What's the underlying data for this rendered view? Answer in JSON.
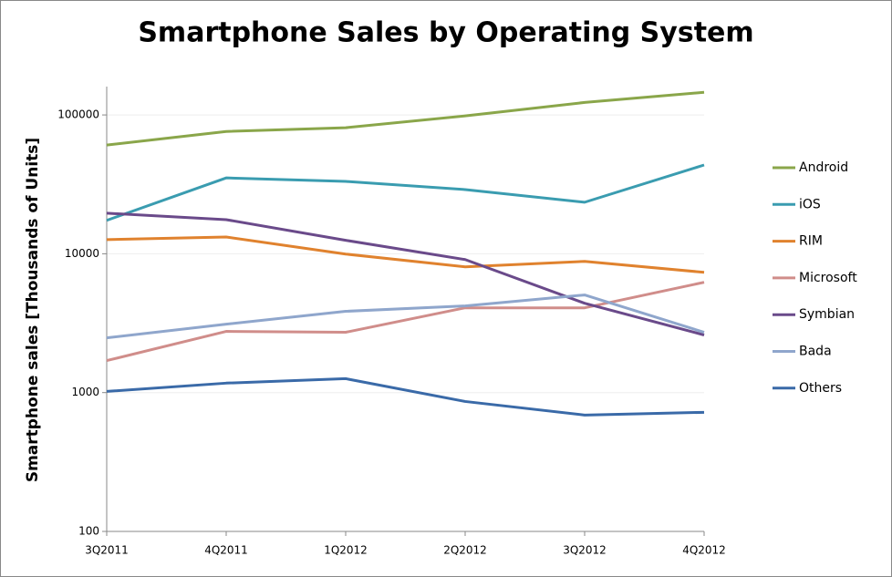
{
  "chart_data": {
    "type": "line",
    "title": "Smartphone Sales by Operating System",
    "y_label": "Smartphone sales [Thousands of Units]",
    "categories": [
      "3Q2011",
      "4Q2011",
      "1Q2012",
      "2Q2012",
      "3Q2012",
      "4Q2012"
    ],
    "log_scale": true,
    "grid": true,
    "legend": "right",
    "ylim": [
      100,
      160000
    ],
    "yticks": [
      100,
      1000,
      10000,
      100000
    ],
    "series": [
      {
        "name": "Android",
        "color": "#8aa64a",
        "values": [
          60700,
          76000,
          80900,
          98400,
          123000,
          145500
        ]
      },
      {
        "name": "iOS",
        "color": "#3a9cb0",
        "values": [
          17400,
          35200,
          33200,
          29000,
          23500,
          43600
        ]
      },
      {
        "name": "RIM",
        "color": "#e0822e",
        "values": [
          12650,
          13200,
          9950,
          8050,
          8810,
          7350
        ]
      },
      {
        "name": "Microsoft",
        "color": "#d08d8a",
        "values": [
          1700,
          2760,
          2720,
          4080,
          4080,
          6230
        ]
      },
      {
        "name": "Symbian",
        "color": "#6a4a8a",
        "values": [
          19600,
          17600,
          12500,
          9080,
          4400,
          2600
        ]
      },
      {
        "name": "Bada",
        "color": "#8fa6cc",
        "values": [
          2480,
          3110,
          3850,
          4210,
          5050,
          2720
        ]
      },
      {
        "name": "Others",
        "color": "#3a6aa8",
        "values": [
          1020,
          1170,
          1260,
          863,
          689,
          721
        ]
      }
    ]
  }
}
